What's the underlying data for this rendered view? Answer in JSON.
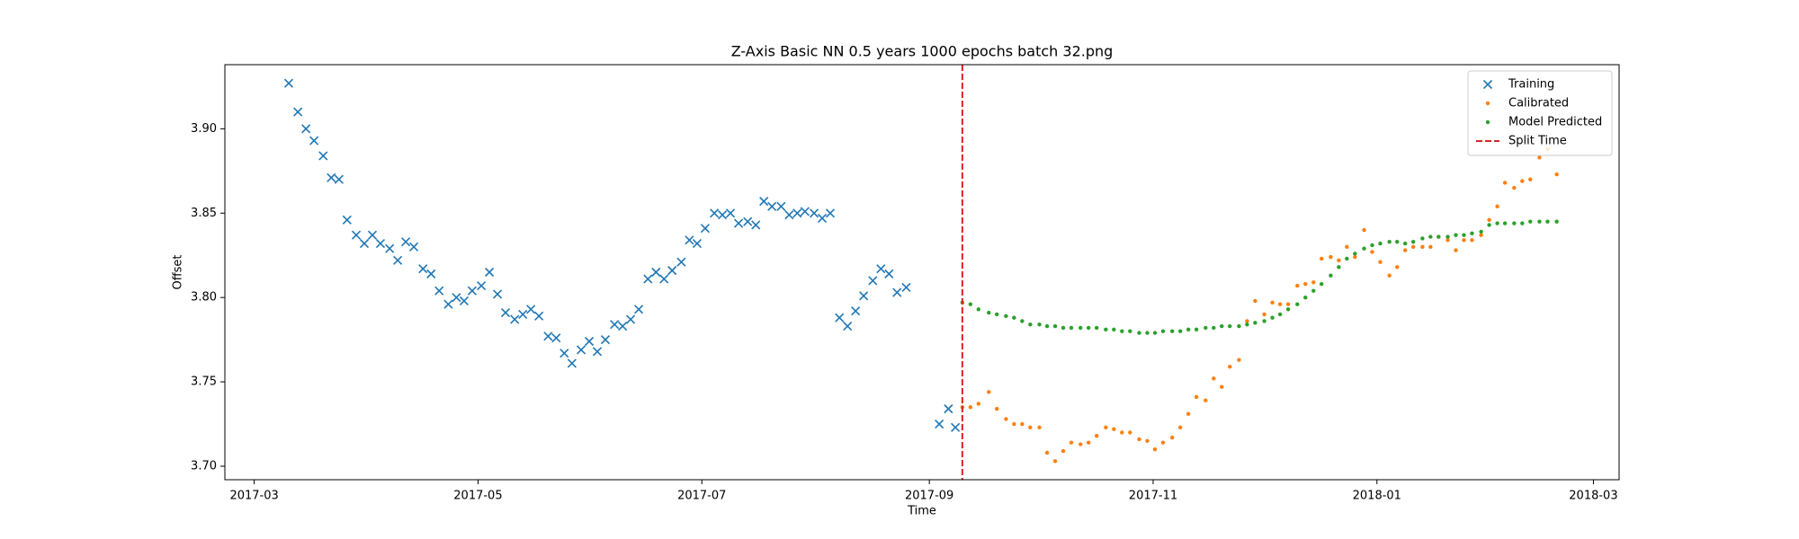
{
  "chart_data": {
    "type": "scatter",
    "title": "Z-Axis Basic NN 0.5 years 1000 epochs batch 32.png",
    "x_label": "Time",
    "y_label": "Offset",
    "xlim": [
      17218,
      17598
    ],
    "xticks": [
      {
        "value": 17226,
        "label": "2017-03"
      },
      {
        "value": 17287,
        "label": "2017-05"
      },
      {
        "value": 17348,
        "label": "2017-07"
      },
      {
        "value": 17410,
        "label": "2017-09"
      },
      {
        "value": 17471,
        "label": "2017-11"
      },
      {
        "value": 17532,
        "label": "2018-01"
      },
      {
        "value": 17591,
        "label": "2018-03"
      }
    ],
    "ylim": [
      3.692,
      3.938
    ],
    "yticks": [
      {
        "value": 3.7,
        "label": "3.70"
      },
      3.75,
      {
        "value": 3.8,
        "label": "3.80"
      },
      3.85,
      {
        "value": 3.9,
        "label": "3.90"
      }
    ],
    "grid": false,
    "legend": "upper right",
    "series": [
      {
        "name": "Training",
        "color": "#1f77b4",
        "marker": "x",
        "x": [
          17235.4,
          17237.9,
          17240.1,
          17242.3,
          17244.8,
          17247.0,
          17249.1,
          17251.3,
          17253.8,
          17256.0,
          17258.2,
          17260.4,
          17262.9,
          17265.1,
          17267.3,
          17269.5,
          17272.0,
          17274.2,
          17276.4,
          17278.9,
          17281.1,
          17283.2,
          17285.4,
          17287.9,
          17290.1,
          17292.3,
          17294.5,
          17297.0,
          17299.2,
          17301.4,
          17303.6,
          17306.1,
          17308.3,
          17310.5,
          17312.6,
          17315.1,
          17317.3,
          17319.5,
          17321.7,
          17324.2,
          17326.4,
          17328.6,
          17330.8,
          17333.3,
          17335.5,
          17337.7,
          17339.9,
          17342.4,
          17344.6,
          17346.7,
          17348.9,
          17351.4,
          17353.6,
          17355.8,
          17358.0,
          17360.5,
          17362.7,
          17364.9,
          17367.1,
          17369.6,
          17371.8,
          17374.0,
          17376.1,
          17378.6,
          17380.8,
          17383.0,
          17385.5,
          17387.7,
          17389.9,
          17392.1,
          17394.6,
          17396.8,
          17399.0,
          17401.2,
          17403.7,
          17412.7,
          17415.2,
          17417.1
        ],
        "values": [
          3.927,
          3.91,
          3.9,
          3.893,
          3.884,
          3.871,
          3.87,
          3.846,
          3.837,
          3.832,
          3.837,
          3.832,
          3.829,
          3.822,
          3.833,
          3.83,
          3.817,
          3.814,
          3.804,
          3.796,
          3.8,
          3.798,
          3.804,
          3.807,
          3.815,
          3.802,
          3.791,
          3.787,
          3.79,
          3.793,
          3.789,
          3.777,
          3.776,
          3.767,
          3.761,
          3.769,
          3.774,
          3.768,
          3.775,
          3.784,
          3.783,
          3.787,
          3.793,
          3.811,
          3.815,
          3.811,
          3.816,
          3.821,
          3.834,
          3.832,
          3.841,
          3.85,
          3.849,
          3.85,
          3.844,
          3.845,
          3.843,
          3.857,
          3.854,
          3.854,
          3.849,
          3.85,
          3.851,
          3.85,
          3.847,
          3.85,
          3.788,
          3.783,
          3.792,
          3.801,
          3.81,
          3.817,
          3.814,
          3.803,
          3.806,
          3.725,
          3.734,
          3.723
        ]
      },
      {
        "name": "Calibrated",
        "color": "#ff7f0e",
        "marker": "o",
        "x": [
          17419.0,
          17421.2,
          17423.4,
          17426.2,
          17428.4,
          17430.9,
          17433.1,
          17435.3,
          17437.5,
          17440.0,
          17442.1,
          17444.3,
          17446.5,
          17448.7,
          17451.2,
          17453.4,
          17455.6,
          17458.1,
          17460.3,
          17462.5,
          17464.7,
          17467.2,
          17469.4,
          17471.5,
          17473.7,
          17476.2,
          17478.4,
          17480.6,
          17482.8,
          17485.3,
          17487.5,
          17489.7,
          17491.9,
          17494.4,
          17496.6,
          17498.8,
          17501.3,
          17503.5,
          17505.6,
          17507.8,
          17510.3,
          17512.5,
          17514.7,
          17516.9,
          17519.4,
          17521.6,
          17523.8,
          17526.0,
          17528.5,
          17530.7,
          17532.9,
          17535.4,
          17537.5,
          17539.7,
          17541.9,
          17544.4,
          17546.6,
          17548.8,
          17551.3,
          17553.5,
          17555.7,
          17557.9,
          17560.4,
          17562.6,
          17564.8,
          17566.9,
          17569.4,
          17571.6,
          17573.8,
          17576.3,
          17578.5,
          17581.0
        ],
        "values": [
          3.735,
          3.735,
          3.737,
          3.744,
          3.734,
          3.728,
          3.725,
          3.725,
          3.723,
          3.723,
          3.708,
          3.703,
          3.709,
          3.714,
          3.713,
          3.714,
          3.718,
          3.723,
          3.722,
          3.72,
          3.72,
          3.716,
          3.715,
          3.71,
          3.714,
          3.717,
          3.723,
          3.731,
          3.741,
          3.739,
          3.752,
          3.747,
          3.759,
          3.763,
          3.786,
          3.798,
          3.79,
          3.797,
          3.796,
          3.796,
          3.807,
          3.808,
          3.809,
          3.823,
          3.824,
          3.822,
          3.83,
          3.824,
          3.84,
          3.827,
          3.821,
          3.813,
          3.818,
          3.828,
          3.83,
          3.83,
          3.83,
          3.836,
          3.834,
          3.828,
          3.834,
          3.834,
          3.837,
          3.846,
          3.854,
          3.868,
          3.865,
          3.869,
          3.87,
          3.883,
          3.888,
          3.873
        ]
      },
      {
        "name": "Model Predicted",
        "color": "#2ca02c",
        "marker": "o",
        "x": [
          17419.0,
          17421.2,
          17423.4,
          17426.2,
          17428.4,
          17430.9,
          17433.1,
          17435.3,
          17437.5,
          17440.0,
          17442.1,
          17444.3,
          17446.5,
          17448.7,
          17451.2,
          17453.4,
          17455.6,
          17458.1,
          17460.3,
          17462.5,
          17464.7,
          17467.2,
          17469.4,
          17471.5,
          17473.7,
          17476.2,
          17478.4,
          17480.6,
          17482.8,
          17485.3,
          17487.5,
          17489.7,
          17491.9,
          17494.4,
          17496.6,
          17498.8,
          17501.3,
          17503.5,
          17505.6,
          17507.8,
          17510.3,
          17512.5,
          17514.7,
          17516.9,
          17519.4,
          17521.6,
          17523.8,
          17526.0,
          17528.5,
          17530.7,
          17532.9,
          17535.4,
          17537.5,
          17539.7,
          17541.9,
          17544.4,
          17546.6,
          17548.8,
          17551.3,
          17553.5,
          17555.7,
          17557.9,
          17560.4,
          17562.6,
          17564.8,
          17566.9,
          17569.4,
          17571.6,
          17573.8,
          17576.3,
          17578.5,
          17581.0
        ],
        "values": [
          3.797,
          3.796,
          3.793,
          3.791,
          3.79,
          3.789,
          3.788,
          3.786,
          3.784,
          3.784,
          3.783,
          3.783,
          3.782,
          3.782,
          3.782,
          3.782,
          3.782,
          3.781,
          3.781,
          3.78,
          3.78,
          3.779,
          3.779,
          3.779,
          3.78,
          3.78,
          3.78,
          3.781,
          3.781,
          3.782,
          3.782,
          3.783,
          3.783,
          3.783,
          3.784,
          3.785,
          3.786,
          3.788,
          3.79,
          3.793,
          3.796,
          3.8,
          3.804,
          3.808,
          3.813,
          3.818,
          3.823,
          3.826,
          3.829,
          3.831,
          3.832,
          3.833,
          3.833,
          3.832,
          3.833,
          3.835,
          3.836,
          3.836,
          3.836,
          3.837,
          3.837,
          3.838,
          3.839,
          3.843,
          3.844,
          3.844,
          3.844,
          3.844,
          3.845,
          3.845,
          3.845,
          3.845
        ]
      }
    ],
    "split_time": {
      "name": "Split Time",
      "x": 17419.0,
      "color": "#d62728"
    }
  }
}
